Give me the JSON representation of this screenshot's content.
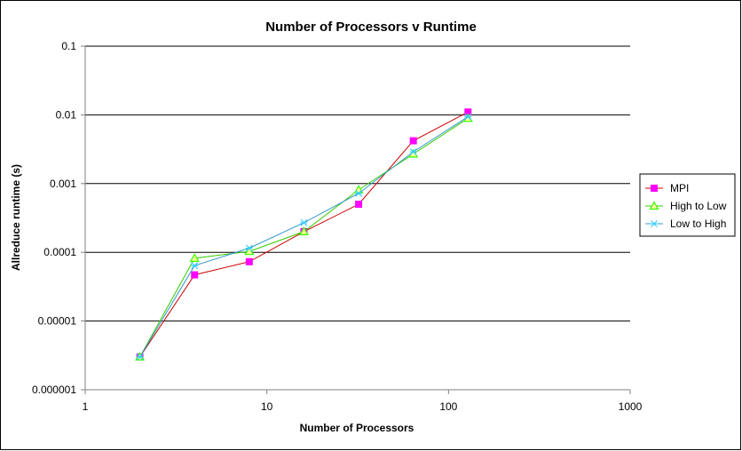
{
  "chart_data": {
    "type": "line",
    "title": "Number of Processors v Runtime",
    "xlabel": "Number of Processors",
    "ylabel": "Allreduce runtime (s)",
    "x_scale": "log",
    "y_scale": "log",
    "xlim": [
      1,
      1000
    ],
    "ylim": [
      1e-06,
      0.1
    ],
    "x_ticks": [
      1,
      10,
      100,
      1000
    ],
    "x_tick_labels": [
      "1",
      "10",
      "100",
      "1000"
    ],
    "y_ticks": [
      1e-06,
      1e-05,
      0.0001,
      0.001,
      0.01,
      0.1
    ],
    "y_tick_labels": [
      "0.000001",
      "0.00001",
      "0.0001",
      "0.001",
      "0.01",
      "0.1"
    ],
    "grid": "horizontal major",
    "legend_position": "right",
    "x": [
      2,
      4,
      8,
      16,
      32,
      64,
      128
    ],
    "series": [
      {
        "name": "MPI",
        "color": "#ff00ff",
        "line_color": "#cc0000",
        "marker": "square",
        "values": [
          3e-06,
          4.7e-05,
          7.3e-05,
          0.0002,
          0.0005,
          0.0042,
          0.011
        ]
      },
      {
        "name": "High to Low",
        "color": "#33ff00",
        "line_color": "#33cc00",
        "marker": "triangle",
        "values": [
          3e-06,
          8.2e-05,
          0.000103,
          0.0002,
          0.00081,
          0.0027,
          0.0089
        ]
      },
      {
        "name": "Low to High",
        "color": "#33ccff",
        "line_color": "#3399cc",
        "marker": "x",
        "values": [
          3e-06,
          6.4e-05,
          0.000115,
          0.00027,
          0.00072,
          0.0029,
          0.0094
        ]
      }
    ]
  }
}
